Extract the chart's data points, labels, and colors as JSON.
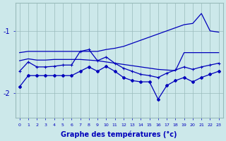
{
  "xlabel": "Graphe des températures (°c)",
  "background_color": "#cce8ea",
  "grid_color": "#99bbbb",
  "line_color": "#0000bb",
  "hours": [
    0,
    1,
    2,
    3,
    4,
    5,
    6,
    7,
    8,
    9,
    10,
    11,
    12,
    13,
    14,
    15,
    16,
    17,
    18,
    19,
    20,
    21,
    22,
    23
  ],
  "line1": [
    -1.35,
    -1.33,
    -1.33,
    -1.33,
    -1.33,
    -1.33,
    -1.33,
    -1.33,
    -1.33,
    -1.33,
    -1.3,
    -1.28,
    -1.25,
    -1.2,
    -1.15,
    -1.1,
    -1.05,
    -1.0,
    -0.95,
    -0.9,
    -0.88,
    -0.72,
    -1.0,
    -1.02
  ],
  "line2": [
    -1.48,
    -1.45,
    -1.47,
    -1.47,
    -1.46,
    -1.46,
    -1.46,
    -1.46,
    -1.47,
    -1.48,
    -1.5,
    -1.52,
    -1.54,
    -1.56,
    -1.58,
    -1.6,
    -1.62,
    -1.63,
    -1.64,
    -1.35,
    -1.35,
    -1.35,
    -1.35,
    -1.35
  ],
  "line3": [
    -1.65,
    -1.5,
    -1.58,
    -1.58,
    -1.57,
    -1.55,
    -1.55,
    -1.33,
    -1.3,
    -1.48,
    -1.42,
    -1.52,
    -1.6,
    -1.65,
    -1.7,
    -1.72,
    -1.75,
    -1.68,
    -1.63,
    -1.58,
    -1.62,
    -1.58,
    -1.55,
    -1.52
  ],
  "line4": [
    -1.9,
    -1.72,
    -1.72,
    -1.72,
    -1.72,
    -1.72,
    -1.72,
    -1.65,
    -1.58,
    -1.65,
    -1.57,
    -1.65,
    -1.75,
    -1.8,
    -1.82,
    -1.82,
    -2.1,
    -1.88,
    -1.8,
    -1.75,
    -1.82,
    -1.75,
    -1.7,
    -1.65
  ],
  "ylim": [
    -2.4,
    -0.55
  ],
  "yticks": [
    -2.0,
    -1.0
  ],
  "ytick_labels": [
    "-2",
    "-1"
  ]
}
